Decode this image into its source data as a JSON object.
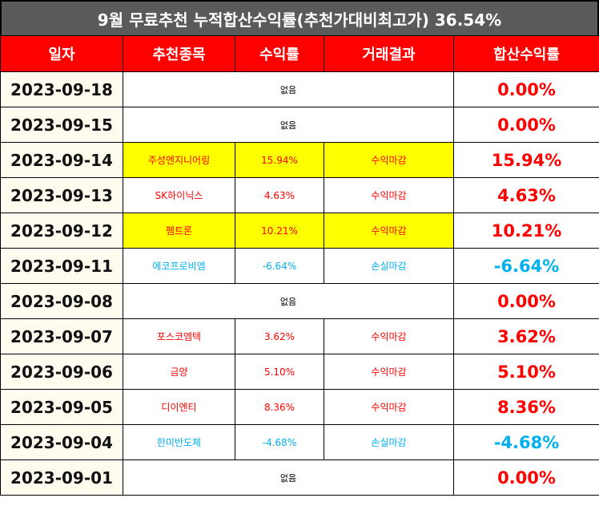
{
  "title": "9월 무료추천 누적합산수익률(추천가대비최고가) 36.54%",
  "headers": [
    "일자",
    "추천종목",
    "수익률",
    "거래결과",
    "합산수익률"
  ],
  "rows": [
    {
      "date": "2023-09-18",
      "stock": "",
      "rate": "",
      "result": "",
      "sum": "0.00%",
      "kind": "none",
      "none_text": "없음"
    },
    {
      "date": "2023-09-15",
      "stock": "",
      "rate": "",
      "result": "",
      "sum": "0.00%",
      "kind": "none",
      "none_text": "없음"
    },
    {
      "date": "2023-09-14",
      "stock": "주성엔지니어링",
      "rate": "15.94%",
      "result": "수익마감",
      "sum": "15.94%",
      "kind": "pos",
      "highlight": true
    },
    {
      "date": "2023-09-13",
      "stock": "SK하이닉스",
      "rate": "4.63%",
      "result": "수익마감",
      "sum": "4.63%",
      "kind": "pos",
      "highlight": false
    },
    {
      "date": "2023-09-12",
      "stock": "펨트론",
      "rate": "10.21%",
      "result": "수익마감",
      "sum": "10.21%",
      "kind": "pos",
      "highlight": true
    },
    {
      "date": "2023-09-11",
      "stock": "에코프로비엠",
      "rate": "-6.64%",
      "result": "손실마감",
      "sum": "-6.64%",
      "kind": "neg",
      "highlight": false
    },
    {
      "date": "2023-09-08",
      "stock": "",
      "rate": "",
      "result": "",
      "sum": "0.00%",
      "kind": "none",
      "none_text": "없음"
    },
    {
      "date": "2023-09-07",
      "stock": "포스코엠텍",
      "rate": "3.62%",
      "result": "수익마감",
      "sum": "3.62%",
      "kind": "pos",
      "highlight": false
    },
    {
      "date": "2023-09-06",
      "stock": "금양",
      "rate": "5.10%",
      "result": "수익마감",
      "sum": "5.10%",
      "kind": "pos",
      "highlight": false
    },
    {
      "date": "2023-09-05",
      "stock": "디이엔티",
      "rate": "8.36%",
      "result": "수익마감",
      "sum": "8.36%",
      "kind": "pos",
      "highlight": false
    },
    {
      "date": "2023-09-04",
      "stock": "한미반도체",
      "rate": "-4.68%",
      "result": "손실마감",
      "sum": "-4.68%",
      "kind": "neg",
      "highlight": false
    },
    {
      "date": "2023-09-01",
      "stock": "",
      "rate": "",
      "result": "",
      "sum": "0.00%",
      "kind": "none",
      "none_text": "없음"
    }
  ],
  "colors": {
    "header_bg": "#ff0000",
    "title_bg": "#5a5a5a",
    "positive": "#ff0000",
    "negative": "#00b0f0",
    "highlight": "#ffff00",
    "date_bg": "#fffbee"
  }
}
